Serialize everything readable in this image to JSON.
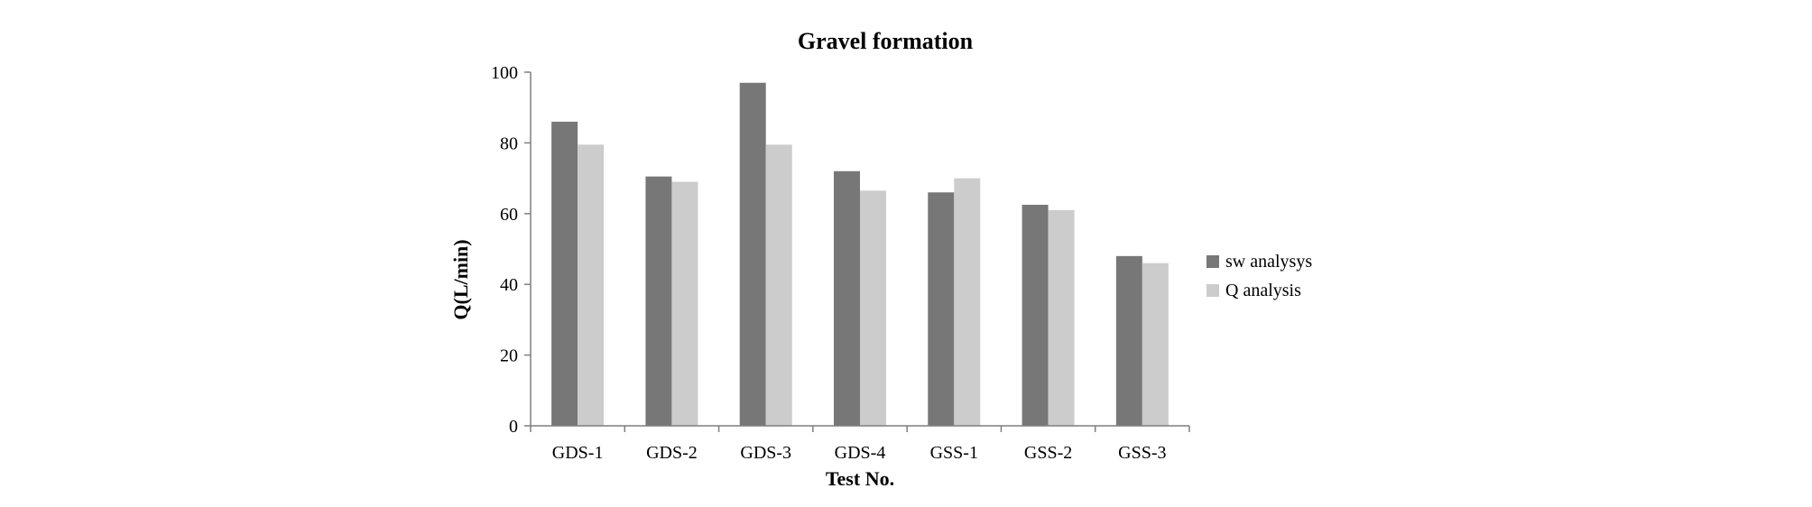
{
  "chart_data": {
    "type": "bar",
    "title": "Gravel formation",
    "xlabel": "Test No.",
    "ylabel": "Q(L/min)",
    "categories": [
      "GDS-1",
      "GDS-2",
      "GDS-3",
      "GDS-4",
      "GSS-1",
      "GSS-2",
      "GSS-3"
    ],
    "series": [
      {
        "name": "sw analysys",
        "color": "#777777",
        "values": [
          86,
          70.5,
          97,
          72,
          66,
          62.5,
          48
        ]
      },
      {
        "name": "Q analysis",
        "color": "#cccccc",
        "values": [
          79.5,
          69,
          79.5,
          66.5,
          70,
          61,
          46
        ]
      }
    ],
    "ylim": [
      0,
      100
    ],
    "yticks": [
      0,
      20,
      40,
      60,
      80,
      100
    ],
    "grid": false,
    "legend_position": "right"
  }
}
